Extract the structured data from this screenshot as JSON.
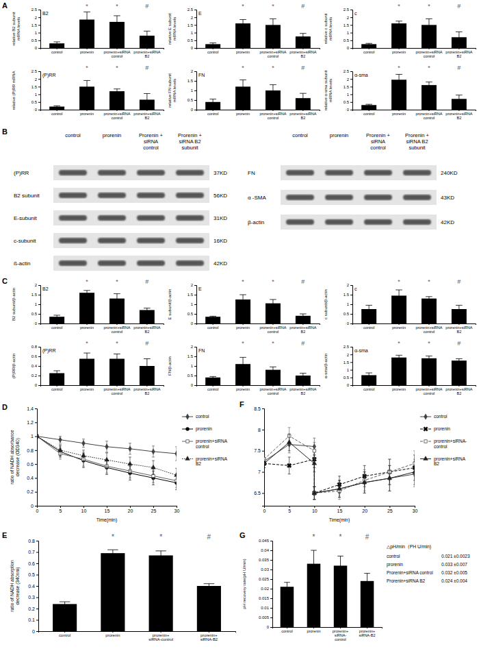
{
  "chart_data": [
    {
      "type": "bar",
      "title": "B2",
      "y_label": "relative B2 subunit mRNA levels",
      "categories": [
        "control",
        "prorenin",
        "prorenin+siRNA control",
        "prorenin+siRNA B2"
      ],
      "values": [
        0.3,
        1.85,
        1.7,
        0.8
      ],
      "errors": [
        0.1,
        0.5,
        0.4,
        0.3
      ],
      "significance": [
        null,
        "*",
        "*",
        "#"
      ],
      "ylim": [
        0,
        2.5
      ],
      "yticks": [
        0,
        0.5,
        1,
        1.5,
        2,
        2.5
      ],
      "color": "#000000"
    },
    {
      "type": "bar",
      "title": "E",
      "y_label": "relative E subunit mRNA levels",
      "categories": [
        "control",
        "prorenin",
        "prorenin+siRNA control",
        "prorenin+siRNA B2"
      ],
      "values": [
        0.25,
        1.6,
        1.5,
        0.75
      ],
      "errors": [
        0.08,
        0.25,
        0.4,
        0.2
      ],
      "significance": [
        null,
        "*",
        "*",
        "#"
      ],
      "ylim": [
        0,
        2.5
      ],
      "yticks": [
        0,
        0.5,
        1,
        1.5,
        2,
        2.5
      ],
      "color": "#000000"
    },
    {
      "type": "bar",
      "title": "c",
      "y_label": "relative c subunit mRNA levels",
      "categories": [
        "control",
        "prorenin",
        "prorenin+siRNA control",
        "prorenin+siRNA B2"
      ],
      "values": [
        0.25,
        1.6,
        1.5,
        0.7
      ],
      "errors": [
        0.05,
        0.15,
        0.4,
        0.35
      ],
      "significance": [
        null,
        "*",
        "*",
        "#"
      ],
      "ylim": [
        0,
        2.5
      ],
      "yticks": [
        0,
        0.5,
        1,
        1.5,
        2,
        2.5
      ],
      "color": "#000000"
    },
    {
      "type": "bar",
      "title": "(P)RR",
      "y_label": "relative (P)RR mRNA",
      "categories": [
        "control",
        "prorenin",
        "prorenin+siRNA control",
        "prorenin+siRNA B2"
      ],
      "values": [
        0.2,
        1.5,
        1.2,
        0.65
      ],
      "errors": [
        0.05,
        0.4,
        0.15,
        0.4
      ],
      "significance": [
        null,
        "*",
        "*",
        "#"
      ],
      "ylim": [
        0,
        2.5
      ],
      "yticks": [
        0,
        0.5,
        1,
        1.5,
        2,
        2.5
      ],
      "color": "#000000"
    },
    {
      "type": "bar",
      "title": "FN",
      "y_label": "relative FN subunit mRNA levels",
      "categories": [
        "control",
        "prorenin",
        "prorenin+siRNA control",
        "prorenin+siRNA B2"
      ],
      "values": [
        0.4,
        1.2,
        1.0,
        0.6
      ],
      "errors": [
        0.15,
        0.35,
        0.3,
        0.25
      ],
      "significance": [
        null,
        "*",
        "*",
        "#"
      ],
      "ylim": [
        0,
        2
      ],
      "yticks": [
        0,
        0.5,
        1,
        1.5,
        2
      ],
      "color": "#000000"
    },
    {
      "type": "bar",
      "title": "α-sma",
      "y_label": "relative α-sma subunit mRNA levels",
      "categories": [
        "control",
        "prorenin",
        "prorenin+siRNA control",
        "prorenin+siRNA B2"
      ],
      "values": [
        0.3,
        1.95,
        1.6,
        0.7
      ],
      "errors": [
        0.05,
        0.35,
        0.2,
        0.25
      ],
      "significance": [
        null,
        "*",
        "*",
        "#"
      ],
      "ylim": [
        0,
        2.5
      ],
      "yticks": [
        0,
        0.5,
        1,
        1.5,
        2,
        2.5
      ],
      "color": "#000000"
    },
    {
      "type": "bar",
      "title": "B2",
      "y_label": "B2 subunit/β-actin",
      "categories": [
        "control",
        "prorenin",
        "prorenin+siRNA control",
        "prorenin+siRNA B2"
      ],
      "values": [
        0.35,
        1.6,
        1.3,
        0.7
      ],
      "errors": [
        0.08,
        0.12,
        0.25,
        0.1
      ],
      "significance": [
        null,
        "*",
        "*",
        "#"
      ],
      "ylim": [
        0,
        2
      ],
      "yticks": [
        0,
        0.5,
        1,
        1.5,
        2
      ],
      "color": "#000000"
    },
    {
      "type": "bar",
      "title": "E",
      "y_label": "E subunit/β-actin",
      "categories": [
        "control",
        "prorenin",
        "prorenin+siRNA control",
        "prorenin+siRNA B2"
      ],
      "values": [
        0.35,
        1.25,
        1.05,
        0.4
      ],
      "errors": [
        0.03,
        0.25,
        0.2,
        0.1
      ],
      "significance": [
        null,
        "*",
        "*",
        "#"
      ],
      "ylim": [
        0,
        2
      ],
      "yticks": [
        0,
        0.5,
        1,
        1.5,
        2
      ],
      "color": "#000000"
    },
    {
      "type": "bar",
      "title": "c",
      "y_label": "c subunit/β-actin",
      "categories": [
        "control",
        "prorenin",
        "prorenin+siRNA control",
        "prorenin+siRNA B2"
      ],
      "values": [
        0.75,
        1.45,
        1.3,
        0.75
      ],
      "errors": [
        0.2,
        0.3,
        0.1,
        0.2
      ],
      "significance": [
        null,
        "*",
        "*",
        "#"
      ],
      "ylim": [
        0,
        2
      ],
      "yticks": [
        0,
        0.5,
        1,
        1.5,
        2
      ],
      "color": "#000000"
    },
    {
      "type": "bar",
      "title": "(P)RR",
      "y_label": "(P)RR/β-actin",
      "categories": [
        "control",
        "prorenin",
        "prorenin+siRNA control",
        "prorenin+siRNA B2"
      ],
      "values": [
        0.25,
        0.55,
        0.55,
        0.4
      ],
      "errors": [
        0.05,
        0.12,
        0.1,
        0.15
      ],
      "significance": [
        null,
        "*",
        "*",
        "#"
      ],
      "ylim": [
        0,
        0.8
      ],
      "yticks": [
        0,
        0.2,
        0.4,
        0.6,
        0.8
      ],
      "color": "#000000"
    },
    {
      "type": "bar",
      "title": "FN",
      "y_label": "FN/β-actin",
      "categories": [
        "control",
        "prorenin",
        "prorenin+siRNA control",
        "prorenin+siRNA B2"
      ],
      "values": [
        0.4,
        1.1,
        0.8,
        0.5
      ],
      "errors": [
        0.05,
        0.35,
        0.15,
        0.12
      ],
      "significance": [
        null,
        "*",
        "*",
        "#"
      ],
      "ylim": [
        0,
        2
      ],
      "yticks": [
        0,
        0.5,
        1,
        1.5,
        2
      ],
      "color": "#000000"
    },
    {
      "type": "bar",
      "title": "α-sma",
      "y_label": "α-sma/β-actin",
      "categories": [
        "control",
        "prorenin",
        "prorenin+siRNA control",
        "prorenin+siRNA B2"
      ],
      "values": [
        0.65,
        1.8,
        1.75,
        1.6
      ],
      "errors": [
        0.15,
        0.15,
        0.15,
        0.12
      ],
      "significance": [
        null,
        "*",
        "*",
        "#"
      ],
      "ylim": [
        0,
        2.5
      ],
      "yticks": [
        0,
        0.5,
        1,
        1.5,
        2,
        2.5
      ],
      "color": "#000000"
    },
    {
      "type": "line",
      "y_label": "ratio of NADH absorbance decrease (OD340)",
      "x_label": "Time(min)",
      "x": [
        0,
        5,
        10,
        15,
        20,
        25,
        30
      ],
      "xlim": [
        0,
        30
      ],
      "xticks": [
        0,
        5,
        10,
        15,
        20,
        25,
        30
      ],
      "ylim": [
        0,
        1.4
      ],
      "yticks": [
        0,
        0.2,
        0.4,
        0.6,
        0.8,
        1,
        1.2,
        1.4
      ],
      "legend": "right",
      "series": [
        {
          "name": "control",
          "color": "#404040",
          "marker": "diamond",
          "line_style": "solid",
          "values": [
            1,
            0.95,
            0.9,
            0.85,
            0.82,
            0.78,
            0.75
          ],
          "errors": [
            0.03,
            0.05,
            0.06,
            0.08,
            0.08,
            0.08,
            0.1
          ]
        },
        {
          "name": "prorenin",
          "color": "#000000",
          "marker": "circle",
          "line_style": "solid",
          "values": [
            1,
            0.78,
            0.65,
            0.55,
            0.47,
            0.4,
            0.33
          ],
          "errors": [
            0.03,
            0.08,
            0.1,
            0.1,
            0.1,
            0.1,
            0.1
          ]
        },
        {
          "name": "prorenin+siRNA control",
          "color": "#606060",
          "marker": "open-square",
          "line_style": "solid",
          "values": [
            1,
            0.75,
            0.67,
            0.57,
            0.5,
            0.43,
            0.36
          ],
          "errors": [
            0.03,
            0.08,
            0.1,
            0.1,
            0.1,
            0.1,
            0.1
          ]
        },
        {
          "name": "prorenin+siRNA B2",
          "color": "#202020",
          "marker": "triangle",
          "line_style": "dotted",
          "values": [
            1,
            0.8,
            0.72,
            0.66,
            0.6,
            0.55,
            0.44
          ],
          "errors": [
            0.03,
            0.08,
            0.08,
            0.1,
            0.1,
            0.1,
            0.1
          ]
        }
      ]
    },
    {
      "type": "bar",
      "y_label": "ratio of NADH absorption decrease (340nm)",
      "categories": [
        "control",
        "prorenin",
        "prorenin+siRNA-control",
        "prorenin+siRNA-B2"
      ],
      "values": [
        0.24,
        0.69,
        0.67,
        0.4
      ],
      "errors": [
        0.02,
        0.03,
        0.04,
        0.02
      ],
      "significance": [
        null,
        "*",
        "*",
        "#"
      ],
      "ylim": [
        0,
        0.8
      ],
      "yticks": [
        0,
        0.1,
        0.2,
        0.3,
        0.4,
        0.5,
        0.6,
        0.7,
        0.8
      ],
      "color": "#000000"
    },
    {
      "type": "line",
      "x_label": "Time(min)",
      "x": [
        0,
        5,
        10,
        10,
        15,
        20,
        25,
        30
      ],
      "xlim": [
        0,
        30
      ],
      "xticks": [
        0,
        5,
        10,
        15,
        20,
        25,
        30
      ],
      "ylim": [
        6.2,
        8.5
      ],
      "yticks": [
        6.5,
        7,
        7.5,
        8,
        8.5
      ],
      "legend": "right",
      "series": [
        {
          "name": "control",
          "color": "#404040",
          "marker": "diamond",
          "line_style": "solid",
          "values": [
            7.25,
            7.65,
            7.6,
            6.5,
            6.6,
            6.75,
            6.85,
            6.95
          ],
          "errors": [
            0.1,
            0.2,
            0.2,
            0.15,
            0.2,
            0.25,
            0.3,
            0.3
          ]
        },
        {
          "name": "prorenin",
          "color": "#000000",
          "marker": "x",
          "line_style": "dashed",
          "values": [
            7.2,
            7.15,
            7.3,
            6.5,
            6.7,
            6.9,
            7.0,
            7.1
          ],
          "errors": [
            0.1,
            0.2,
            0.2,
            0.15,
            0.2,
            0.25,
            0.3,
            0.3
          ]
        },
        {
          "name": "prorenin+siRNA-control",
          "color": "#606060",
          "marker": "open-square",
          "line_style": "dashed",
          "values": [
            7.3,
            7.85,
            7.5,
            6.5,
            6.55,
            6.8,
            7.0,
            7.2
          ],
          "errors": [
            0.1,
            0.2,
            0.2,
            0.15,
            0.2,
            0.25,
            0.3,
            0.3
          ]
        },
        {
          "name": "prorenin+siRNA B2",
          "color": "#202020",
          "marker": "triangle",
          "line_style": "solid",
          "values": [
            7.2,
            7.7,
            7.2,
            6.5,
            6.6,
            6.75,
            6.85,
            7.0
          ],
          "errors": [
            0.1,
            0.2,
            0.2,
            0.15,
            0.2,
            0.25,
            0.3,
            0.3
          ]
        }
      ]
    },
    {
      "type": "bar",
      "y_label": "pH recovery rate(pH U/min)",
      "categories": [
        "control",
        "prorenin",
        "prorenin+siRNA-control",
        "prorenin+siRNA-B2"
      ],
      "values": [
        0.021,
        0.033,
        0.032,
        0.024
      ],
      "errors": [
        0.0023,
        0.007,
        0.005,
        0.004
      ],
      "significance": [
        null,
        "*",
        "*",
        "#"
      ],
      "ylim": [
        0,
        0.045
      ],
      "yticks": [
        0,
        0.005,
        0.01,
        0.015,
        0.02,
        0.025,
        0.03,
        0.035,
        0.04,
        0.045
      ],
      "color": "#000000"
    }
  ],
  "panel_labels": [
    "A",
    "B",
    "C",
    "D",
    "E",
    "F",
    "G"
  ],
  "blot": {
    "left": {
      "columns": [
        "control",
        "prorenin",
        "Prorenin +siRNA control",
        "Prorenin +siRNA B2 subunit"
      ],
      "rows": [
        {
          "label": "(P)RR",
          "size": "37KD"
        },
        {
          "label": "B2 subunit",
          "size": "56KD"
        },
        {
          "label": "E-subunit",
          "size": "31KD"
        },
        {
          "label": "c-subunit",
          "size": "16KD"
        },
        {
          "label": "ß-actin",
          "size": "42KD"
        }
      ]
    },
    "right": {
      "columns": [
        "control",
        "prorenin",
        "Prorenin +siRNA control",
        "Prorenin +siRNA B2 subunit"
      ],
      "rows": [
        {
          "label": "FN",
          "size": "240KD"
        },
        {
          "label": "α -SMA",
          "size": "43KD"
        },
        {
          "label": "β-actin",
          "size": "42KD"
        }
      ]
    }
  },
  "g_table": {
    "header": "△pH/min（PH U/min)",
    "rows": [
      [
        "control",
        "0.021 ±0.0023"
      ],
      [
        "prorenin",
        "0.033 ±0.007"
      ],
      [
        "Prorenin+siRNA control",
        "0.032 ±0.005"
      ],
      [
        "Prorenin+siRNA B2",
        "0.024 ±0.004"
      ]
    ]
  }
}
